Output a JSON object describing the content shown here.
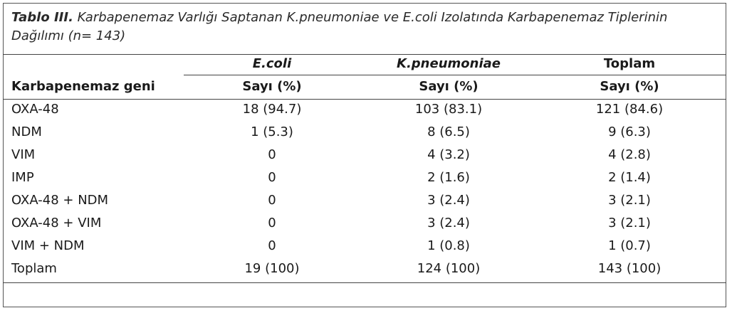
{
  "caption": {
    "lead": "Tablo III.",
    "text": " Karbapenemaz Varlığı Saptanan K.pneumoniae ve E.coli Izolatında Karbapenemaz Tiplerinin Dağılımı (n= 143)"
  },
  "table": {
    "row_header": "Karbapenemaz geni",
    "groups": [
      "E.coli",
      "K.pneumoniae",
      "Toplam"
    ],
    "subheaders": [
      "Sayı (%)",
      "Sayı (%)",
      "Sayı (%)"
    ],
    "rows": [
      {
        "gene": "OXA-48",
        "values": [
          "18 (94.7)",
          "103 (83.1)",
          "121 (84.6)"
        ]
      },
      {
        "gene": "NDM",
        "values": [
          "1 (5.3)",
          "8 (6.5)",
          "9 (6.3)"
        ]
      },
      {
        "gene": "VIM",
        "values": [
          "0",
          "4 (3.2)",
          "4 (2.8)"
        ]
      },
      {
        "gene": "IMP",
        "values": [
          "0",
          "2 (1.6)",
          "2 (1.4)"
        ]
      },
      {
        "gene": "OXA-48 + NDM",
        "values": [
          "0",
          "3 (2.4)",
          "3 (2.1)"
        ]
      },
      {
        "gene": "OXA-48 + VIM",
        "values": [
          "0",
          "3 (2.4)",
          "3 (2.1)"
        ]
      },
      {
        "gene": "VIM + NDM",
        "values": [
          "0",
          "1 (0.8)",
          "1 (0.7)"
        ]
      },
      {
        "gene": "Toplam",
        "values": [
          "19 (100)",
          "124 (100)",
          "143 (100)"
        ]
      }
    ]
  }
}
